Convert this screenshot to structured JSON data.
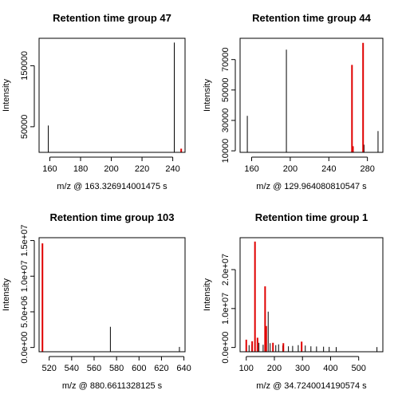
{
  "chart_data": [
    {
      "type": "bar",
      "title": "Retention time group 47",
      "xlabel": "m/z @ 163.326914001475 s",
      "ylabel": "Intensity",
      "xlim": [
        153,
        248
      ],
      "ylim": [
        8000,
        195000
      ],
      "xticks": [
        160,
        180,
        200,
        220,
        240
      ],
      "yticks": [
        50000,
        150000
      ],
      "yticklabels": [
        "50000",
        "150000"
      ],
      "series": [
        {
          "color": "#000000",
          "points": [
            [
              159.0,
              52000
            ],
            [
              241.0,
              188000
            ]
          ]
        },
        {
          "color": "#e00000",
          "points": [
            [
              245.5,
              14000
            ]
          ]
        }
      ]
    },
    {
      "type": "bar",
      "title": "Retention time group 44",
      "xlabel": "m/z @ 129.964080810547 s",
      "ylabel": "Intensity",
      "xlim": [
        148,
        296
      ],
      "ylim": [
        9000,
        84000
      ],
      "xticks": [
        160,
        200,
        240,
        280
      ],
      "yticks": [
        10000,
        30000,
        50000,
        70000
      ],
      "yticklabels": [
        "10000",
        "30000",
        "50000",
        "70000"
      ],
      "series": [
        {
          "color": "#000000",
          "points": [
            [
              155.5,
              33000
            ],
            [
              196.0,
              76500
            ],
            [
              291.0,
              23000
            ],
            [
              276.5,
              14000
            ]
          ]
        },
        {
          "color": "#e00000",
          "points": [
            [
              264.0,
              66500
            ],
            [
              265.0,
              13000
            ],
            [
              275.5,
              81000
            ]
          ]
        }
      ]
    },
    {
      "type": "bar",
      "title": "Retention time group 103",
      "xlabel": "m/z @ 880.6611328125 s",
      "ylabel": "Intensity",
      "xlim": [
        511,
        641
      ],
      "ylim": [
        -600000,
        15400000
      ],
      "xticks": [
        520,
        540,
        560,
        580,
        600,
        620,
        640
      ],
      "yticks": [
        0,
        5000000,
        10000000,
        15000000
      ],
      "yticklabels": [
        "0.0e+00",
        "5.0e+06",
        "1.0e+07",
        "1.5e+07"
      ],
      "series": [
        {
          "color": "#000000",
          "points": [
            [
              574.5,
              2900000
            ],
            [
              636.0,
              80000
            ]
          ]
        },
        {
          "color": "#e00000",
          "points": [
            [
              514.0,
              14600000
            ]
          ]
        }
      ]
    },
    {
      "type": "bar",
      "title": "Retention time group 1",
      "xlabel": "m/z @ 34.7240014190574 s",
      "ylabel": "Intensity",
      "xlim": [
        78,
        586
      ],
      "ylim": [
        -1100000,
        28200000
      ],
      "xticks": [
        100,
        200,
        300,
        400,
        500
      ],
      "yticks": [
        0,
        10000000,
        20000000
      ],
      "yticklabels": [
        "0.0e+00",
        "1.0e+07",
        "2.0e+07"
      ],
      "series": [
        {
          "color": "#000000",
          "points": [
            [
              110,
              600000
            ],
            [
              120,
              800000
            ],
            [
              145,
              1200000
            ],
            [
              160,
              700000
            ],
            [
              178,
              9200000
            ],
            [
              185,
              1100000
            ],
            [
              195,
              900000
            ],
            [
              205,
              600000
            ],
            [
              215,
              800000
            ],
            [
              230,
              500000
            ],
            [
              250,
              300000
            ],
            [
              265,
              400000
            ],
            [
              285,
              600000
            ],
            [
              310,
              500000
            ],
            [
              330,
              300000
            ],
            [
              350,
              250000
            ],
            [
              375,
              200000
            ],
            [
              395,
              150000
            ],
            [
              420,
              100000
            ],
            [
              565,
              100000
            ]
          ]
        },
        {
          "color": "#e00000",
          "points": [
            [
              100,
              2000000
            ],
            [
              121,
              1600000
            ],
            [
              131,
              27200000
            ],
            [
              140,
              2500000
            ],
            [
              167,
              15700000
            ],
            [
              171,
              5500000
            ],
            [
              195,
              1200000
            ],
            [
              232,
              1100000
            ],
            [
              297,
              1500000
            ]
          ]
        }
      ]
    }
  ]
}
